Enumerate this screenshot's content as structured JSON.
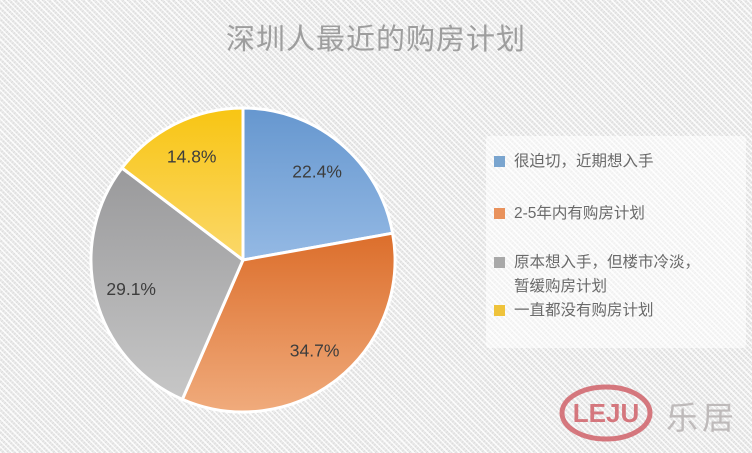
{
  "title": "深圳人最近的购房计划",
  "chart_data": {
    "type": "pie",
    "title": "深圳人最近的购房计划",
    "legend_position": "right",
    "label_color": "#3d3d3d",
    "slices": [
      {
        "label": "很迫切，近期想入手",
        "value": 22.4,
        "display": "22.4%",
        "color_top": "#6697cf",
        "color_bottom": "#94b9e4",
        "legend_color": "#7aa5cf"
      },
      {
        "label": "2-5年内有购房计划",
        "value": 34.7,
        "display": "34.7%",
        "color_top": "#dc6e2b",
        "color_bottom": "#f0ab7c",
        "legend_color": "#e9925c"
      },
      {
        "label": "原本想入手，但楼市冷淡，\n暂缓购房计划",
        "value": 29.1,
        "display": "29.1%",
        "color_top": "#99999b",
        "color_bottom": "#c7c7c7",
        "legend_color": "#a9a9a9"
      },
      {
        "label": "一直都没有购房计划",
        "value": 14.8,
        "display": "14.8%",
        "color_top": "#f8c513",
        "color_bottom": "#fbd86a",
        "legend_color": "#efc33b"
      }
    ]
  },
  "logo": {
    "text": "LEJU",
    "cn": "乐居",
    "color": "#cf5a62"
  }
}
